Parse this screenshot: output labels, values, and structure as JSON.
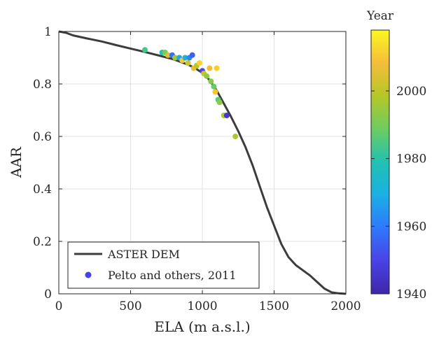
{
  "chart_data": {
    "type": "scatter",
    "title": "",
    "xlabel": "ELA (m a.s.l.)",
    "ylabel": "AAR",
    "xlim": [
      0,
      2000
    ],
    "ylim": [
      0,
      1
    ],
    "xticks": [
      "0",
      "500",
      "1000",
      "1500",
      "2000"
    ],
    "yticks": [
      "0",
      "0.2",
      "0.4",
      "0.6",
      "0.8",
      "1"
    ],
    "grid": true,
    "legend_position": "bottom-left",
    "colorbar": {
      "label": "Year",
      "range": [
        1940,
        2018
      ],
      "ticks": [
        "1940",
        "1960",
        "1980",
        "2000"
      ],
      "colormap": [
        "#3e26a8",
        "#4a42e7",
        "#2f79fb",
        "#1bafe4",
        "#20c2b1",
        "#6dcc60",
        "#b4c728",
        "#f5bd3a",
        "#faf821"
      ]
    },
    "series": [
      {
        "name": "ASTER DEM",
        "kind": "line",
        "color": "#3c3c3c",
        "x": [
          0,
          50,
          100,
          200,
          300,
          400,
          500,
          600,
          700,
          800,
          900,
          950,
          1000,
          1050,
          1100,
          1150,
          1200,
          1250,
          1300,
          1350,
          1400,
          1450,
          1500,
          1550,
          1600,
          1650,
          1700,
          1750,
          1800,
          1850,
          1900,
          1950,
          2000
        ],
        "y": [
          1.0,
          0.995,
          0.985,
          0.973,
          0.962,
          0.948,
          0.935,
          0.922,
          0.908,
          0.894,
          0.874,
          0.86,
          0.842,
          0.815,
          0.775,
          0.725,
          0.675,
          0.62,
          0.56,
          0.49,
          0.41,
          0.33,
          0.26,
          0.19,
          0.14,
          0.11,
          0.09,
          0.07,
          0.045,
          0.02,
          0.006,
          0.002,
          0.0
        ]
      },
      {
        "name": "Pelto and others, 2011",
        "kind": "scatter",
        "legend_color": "#4a42e7",
        "points": [
          {
            "x": 600,
            "y": 0.93,
            "year": 1984
          },
          {
            "x": 720,
            "y": 0.92,
            "year": 1978
          },
          {
            "x": 740,
            "y": 0.92,
            "year": 1990
          },
          {
            "x": 760,
            "y": 0.91,
            "year": 2005
          },
          {
            "x": 790,
            "y": 0.91,
            "year": 1958
          },
          {
            "x": 810,
            "y": 0.9,
            "year": 1996
          },
          {
            "x": 840,
            "y": 0.9,
            "year": 1968
          },
          {
            "x": 860,
            "y": 0.89,
            "year": 2010
          },
          {
            "x": 880,
            "y": 0.9,
            "year": 1972
          },
          {
            "x": 900,
            "y": 0.88,
            "year": 2002
          },
          {
            "x": 910,
            "y": 0.9,
            "year": 1962
          },
          {
            "x": 930,
            "y": 0.91,
            "year": 1955
          },
          {
            "x": 940,
            "y": 0.86,
            "year": 2006
          },
          {
            "x": 960,
            "y": 0.87,
            "year": 1999
          },
          {
            "x": 980,
            "y": 0.88,
            "year": 2012
          },
          {
            "x": 1000,
            "y": 0.85,
            "year": 1950
          },
          {
            "x": 1010,
            "y": 0.84,
            "year": 2001
          },
          {
            "x": 1030,
            "y": 0.83,
            "year": 1994
          },
          {
            "x": 1050,
            "y": 0.86,
            "year": 2008
          },
          {
            "x": 1060,
            "y": 0.81,
            "year": 1992
          },
          {
            "x": 1080,
            "y": 0.79,
            "year": 1988
          },
          {
            "x": 1090,
            "y": 0.77,
            "year": 2009
          },
          {
            "x": 1100,
            "y": 0.86,
            "year": 2011
          },
          {
            "x": 1110,
            "y": 0.74,
            "year": 1986
          },
          {
            "x": 1120,
            "y": 0.73,
            "year": 1993
          },
          {
            "x": 1150,
            "y": 0.68,
            "year": 1998
          },
          {
            "x": 1170,
            "y": 0.68,
            "year": 1946
          },
          {
            "x": 1230,
            "y": 0.6,
            "year": 1997
          }
        ]
      }
    ]
  }
}
